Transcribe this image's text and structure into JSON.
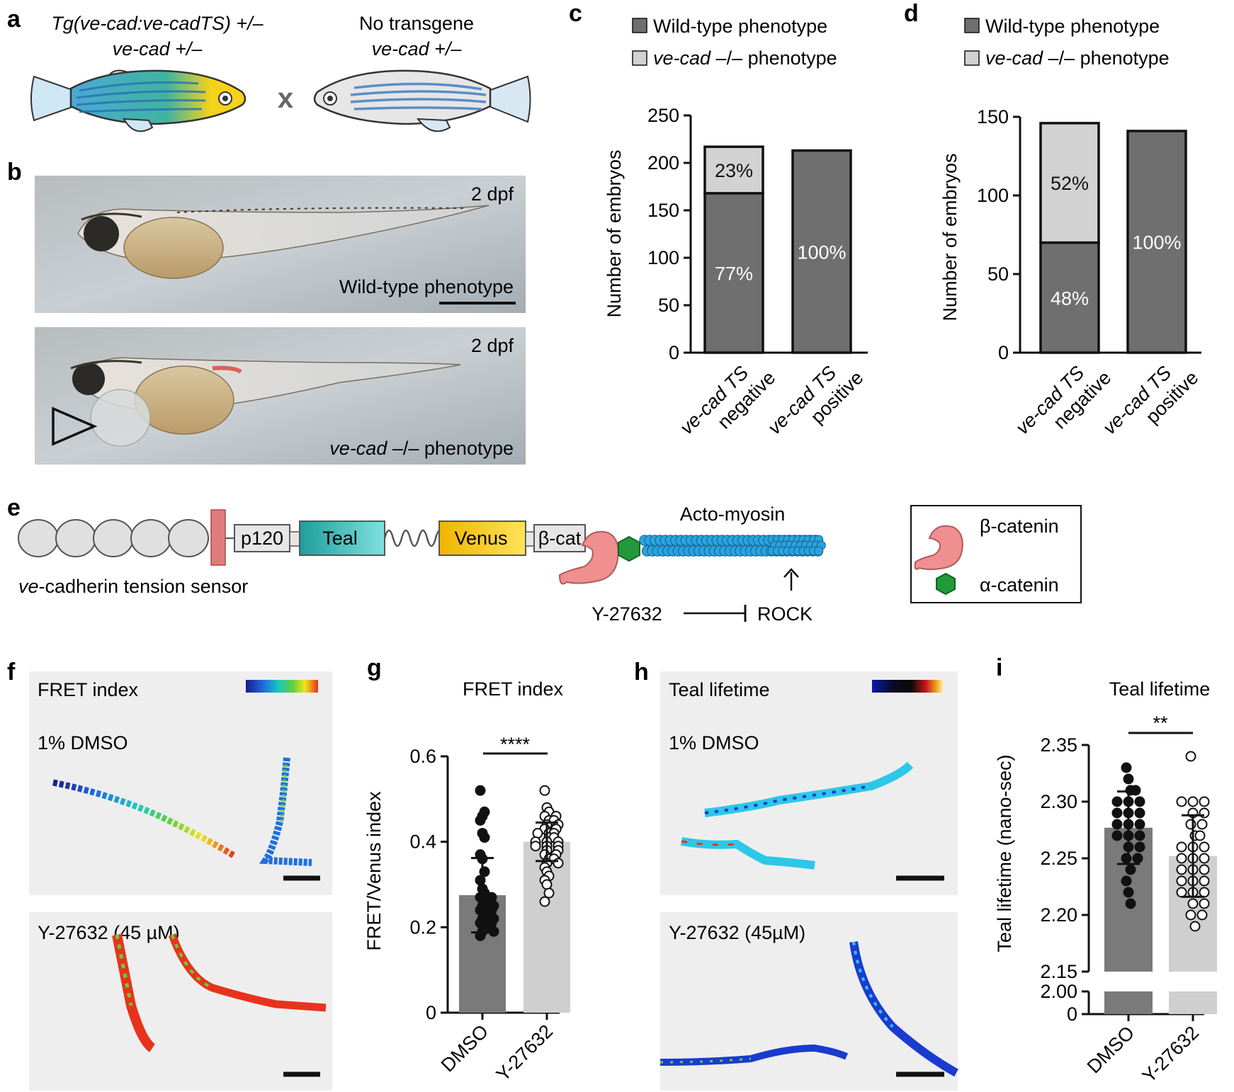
{
  "panel_letters": {
    "a": "a",
    "b": "b",
    "c": "c",
    "d": "d",
    "e": "e",
    "f": "f",
    "g": "g",
    "h": "h",
    "i": "i"
  },
  "panel_a": {
    "left_line1": "Tg(ve-cad:ve-cadTS) +/–",
    "left_line2": "ve-cad +/–",
    "cross_symbol": "x",
    "right_line1": "No transgene",
    "right_line2": "ve-cad +/–"
  },
  "panel_b": {
    "top_stage": "2 dpf",
    "top_label": "Wild-type phenotype",
    "bottom_stage": "2 dpf",
    "bottom_label_italic": "ve-cad",
    "bottom_label_rest": " –/– phenotype"
  },
  "colors": {
    "wt_fill": "#6f6f6f",
    "mut_fill": "#d2d2d2",
    "dmso_bar": "#7a7a7a",
    "y_bar": "#cfcfcf",
    "img_bg": "#eeeeee",
    "teal": "#36b8b6",
    "venus": "#f4c21b",
    "red_tm": "#e27b7b",
    "bcat": "#ef8f90",
    "acat": "#22993a",
    "actin": "#29a3e0"
  },
  "chart_data": [
    {
      "panel": "c",
      "type": "bar",
      "stacked": true,
      "categories": [
        [
          "ve-cad TS",
          "negative"
        ],
        [
          "ve-cad TS",
          "positive"
        ]
      ],
      "series": [
        {
          "name": "Wild-type phenotype",
          "values": [
            168,
            213
          ],
          "labels": [
            "77%",
            "100%"
          ]
        },
        {
          "name": "ve-cad –/– phenotype",
          "values": [
            49,
            0
          ],
          "labels": [
            "23%",
            ""
          ]
        }
      ],
      "legend": [
        "Wild-type phenotype",
        "ve-cad –/– phenotype"
      ],
      "ylabel": "Number of embryos",
      "ylim": [
        0,
        250
      ],
      "yticks": [
        "0",
        "50",
        "100",
        "150",
        "200",
        "250"
      ]
    },
    {
      "panel": "d",
      "type": "bar",
      "stacked": true,
      "categories": [
        [
          "ve-cad TS",
          "negative"
        ],
        [
          "ve-cad TS",
          "positive"
        ]
      ],
      "series": [
        {
          "name": "Wild-type phenotype",
          "values": [
            70,
            141
          ],
          "labels": [
            "48%",
            "100%"
          ]
        },
        {
          "name": "ve-cad –/– phenotype",
          "values": [
            76,
            0
          ],
          "labels": [
            "52%",
            ""
          ]
        }
      ],
      "legend": [
        "Wild-type phenotype",
        "ve-cad –/– phenotype"
      ],
      "ylabel": "Number of embryos",
      "ylim": [
        0,
        150
      ],
      "yticks": [
        "0",
        "50",
        "100",
        "150"
      ]
    },
    {
      "panel": "g",
      "type": "bar",
      "title": "FRET index",
      "categories": [
        "DMSO",
        "Y-27632"
      ],
      "values": [
        0.275,
        0.4
      ],
      "sd": [
        0.087,
        0.045
      ],
      "points": [
        [
          0.52,
          0.46,
          0.47,
          0.45,
          0.42,
          0.41,
          0.37,
          0.36,
          0.33,
          0.31,
          0.29,
          0.28,
          0.27,
          0.27,
          0.26,
          0.26,
          0.25,
          0.25,
          0.24,
          0.24,
          0.23,
          0.23,
          0.22,
          0.22,
          0.21,
          0.21,
          0.2,
          0.2,
          0.19,
          0.19,
          0.18
        ],
        [
          0.52,
          0.48,
          0.47,
          0.46,
          0.46,
          0.45,
          0.45,
          0.44,
          0.44,
          0.43,
          0.43,
          0.42,
          0.42,
          0.42,
          0.41,
          0.41,
          0.4,
          0.4,
          0.4,
          0.39,
          0.39,
          0.39,
          0.38,
          0.38,
          0.37,
          0.37,
          0.36,
          0.36,
          0.35,
          0.35,
          0.34,
          0.33,
          0.32,
          0.31,
          0.3,
          0.28,
          0.26
        ]
      ],
      "ylabel": "FRET/Venus index",
      "ylim": [
        0,
        0.6
      ],
      "yticks": [
        "0",
        "0.2",
        "0.4",
        "0.6"
      ],
      "significance": "****"
    },
    {
      "panel": "i",
      "type": "bar",
      "title": "Teal lifetime",
      "categories": [
        "DMSO",
        "Y-27632"
      ],
      "values": [
        2.277,
        2.252
      ],
      "sd": [
        0.032,
        0.036
      ],
      "points": [
        [
          2.33,
          2.32,
          2.31,
          2.31,
          2.3,
          2.3,
          2.3,
          2.29,
          2.29,
          2.29,
          2.28,
          2.28,
          2.28,
          2.27,
          2.27,
          2.27,
          2.26,
          2.26,
          2.25,
          2.25,
          2.24,
          2.23,
          2.22,
          2.21
        ],
        [
          2.34,
          2.3,
          2.3,
          2.3,
          2.29,
          2.29,
          2.28,
          2.28,
          2.27,
          2.27,
          2.26,
          2.26,
          2.26,
          2.25,
          2.25,
          2.25,
          2.24,
          2.24,
          2.24,
          2.23,
          2.23,
          2.23,
          2.22,
          2.22,
          2.22,
          2.21,
          2.21,
          2.2,
          2.2,
          2.19
        ]
      ],
      "ylabel": "Teal lifetime (nano-sec)",
      "ylim": [
        2.15,
        2.35
      ],
      "yticks": [
        "2.15",
        "2.20",
        "2.25",
        "2.30",
        "2.35"
      ],
      "axis_break_ticks": [
        "0",
        "2.00"
      ],
      "significance": "**"
    }
  ],
  "panel_e": {
    "p120": "p120",
    "teal": "Teal",
    "venus": "Venus",
    "bcat": "β-cat",
    "actomyosin": "Acto-myosin",
    "sensor_label_italic": "ve",
    "sensor_label_rest": "-cadherin tension sensor",
    "inhibitor": "Y-27632",
    "rock": "ROCK",
    "legend_bcat": "β-catenin",
    "legend_acat": "α-catenin"
  },
  "panel_f": {
    "title": "FRET index",
    "cond1": "1% DMSO",
    "cond2": "Y-27632 (45 µM)"
  },
  "panel_h": {
    "title": "Teal lifetime",
    "cond1": "1% DMSO",
    "cond2": "Y-27632 (45µM)"
  }
}
